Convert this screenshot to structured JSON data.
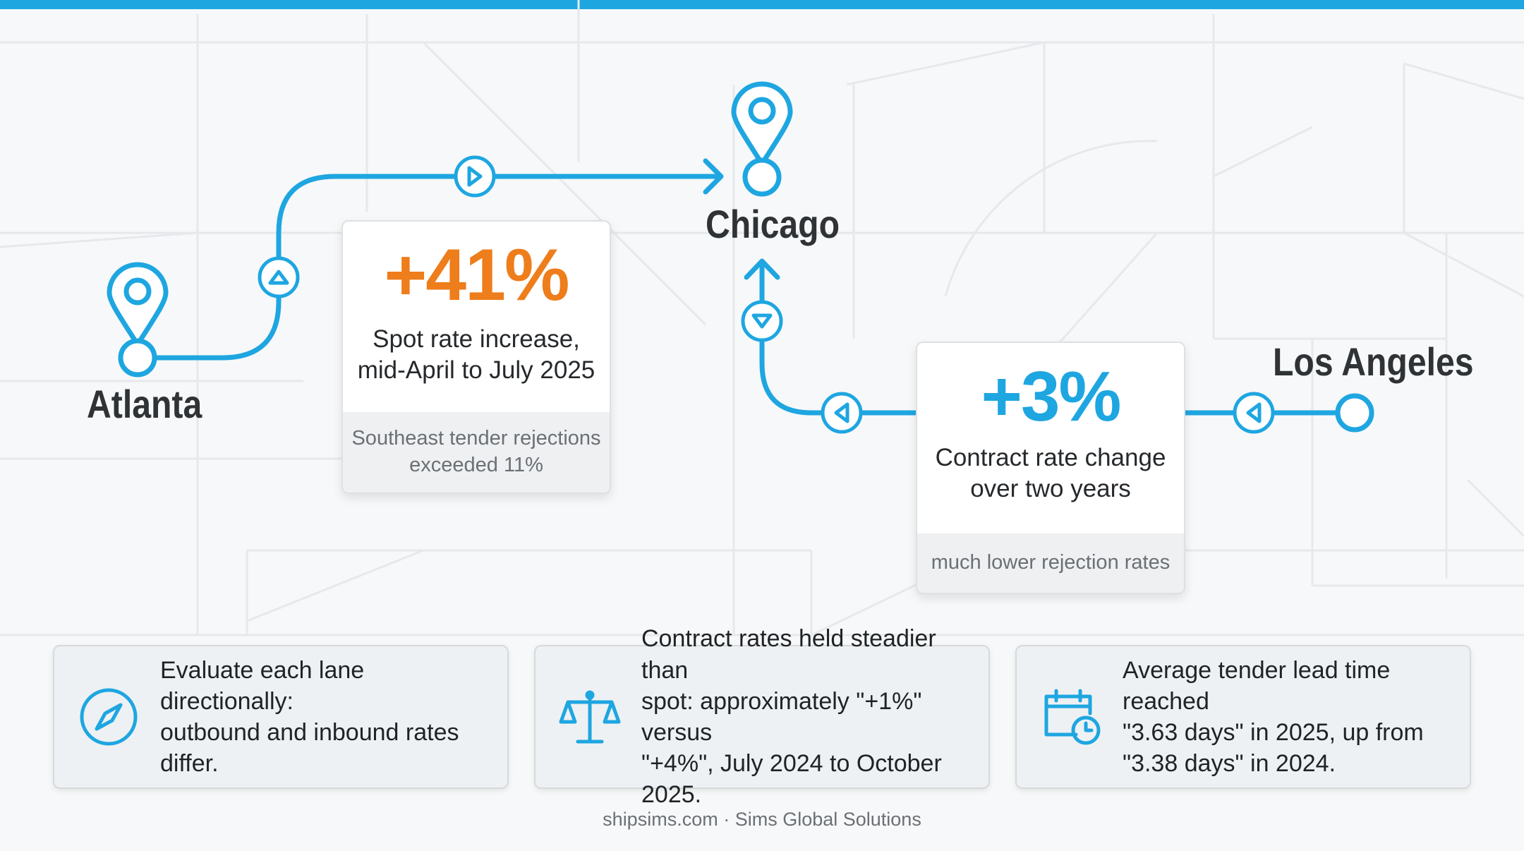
{
  "colors": {
    "accent_blue": "#1ea6e1",
    "highlight_orange": "#ee7d1b",
    "text_dark": "#2f3336",
    "text_muted": "#6b7075",
    "card_footer_bg": "#eef0f2"
  },
  "cities": {
    "atlanta": "Atlanta",
    "chicago": "Chicago",
    "los_angeles": "Los Angeles"
  },
  "stats": {
    "spot": {
      "value": "+41%",
      "description_line1": "Spot rate increase,",
      "description_line2": "mid-April to July 2025",
      "note_line1": "Southeast tender rejections",
      "note_line2": "exceeded 11%"
    },
    "contract": {
      "value": "+3%",
      "description_line1": "Contract rate change",
      "description_line2": "over two years",
      "note": "much lower rejection rates"
    }
  },
  "info_cards": [
    {
      "icon": "compass-icon",
      "line1": "Evaluate each lane directionally:",
      "line2": "outbound and inbound rates differ."
    },
    {
      "icon": "balance-scale-icon",
      "line1": "Contract rates held steadier than",
      "line2": "spot: approximately \"+1%\" versus",
      "line3": "\"+4%\", July 2024 to October 2025."
    },
    {
      "icon": "calendar-clock-icon",
      "line1": "Average tender lead time reached",
      "line2": "\"3.63 days\" in 2025, up from",
      "line3": "\"3.38 days\" in 2024."
    }
  ],
  "footer": "shipsims.com · Sims Global Solutions"
}
